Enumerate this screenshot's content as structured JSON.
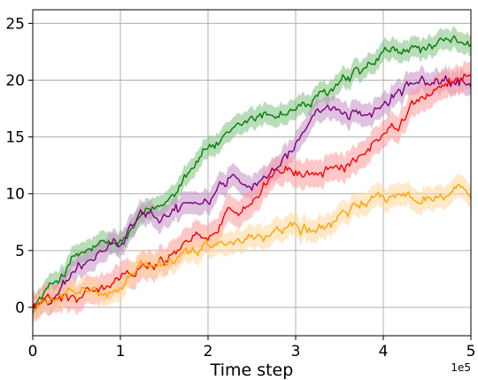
{
  "chart_data": {
    "type": "line",
    "xlabel": "Time step",
    "ylabel": "",
    "x_offset_label": "1e5",
    "xlim": [
      0,
      5
    ],
    "ylim": [
      -2.5,
      26.2
    ],
    "xticks": [
      0,
      1,
      2,
      3,
      4,
      5
    ],
    "xtick_labels": [
      "0",
      "1",
      "2",
      "3",
      "4",
      "5"
    ],
    "yticks": [
      0,
      5,
      10,
      15,
      20,
      25
    ],
    "ytick_labels": [
      "0",
      "5",
      "10",
      "15",
      "20",
      "25"
    ],
    "grid": true,
    "series": [
      {
        "color": "#008000",
        "band_color": "#7fbf7f",
        "x": [
          0,
          0.25,
          0.5,
          0.75,
          1.0,
          1.25,
          1.5,
          1.75,
          2.0,
          2.25,
          2.5,
          2.75,
          3.0,
          3.25,
          3.5,
          3.75,
          4.0,
          4.25,
          4.5,
          4.75,
          5.0
        ],
        "y": [
          0,
          2.2,
          4.5,
          5.3,
          5.5,
          7.8,
          9.0,
          12.0,
          14.2,
          14.8,
          16.5,
          17.0,
          17.5,
          18.2,
          19.5,
          20.5,
          22.0,
          22.5,
          22.8,
          23.0,
          23.7
        ],
        "band": 0.9
      },
      {
        "color": "#800080",
        "band_color": "#c38fc3",
        "x": [
          0,
          0.25,
          0.5,
          0.75,
          1.0,
          1.25,
          1.5,
          1.75,
          2.0,
          2.25,
          2.5,
          2.75,
          3.0,
          3.25,
          3.5,
          3.75,
          4.0,
          4.25,
          4.5,
          4.75,
          5.0
        ],
        "y": [
          0,
          1.2,
          3.2,
          4.8,
          5.8,
          7.8,
          8.5,
          8.8,
          9.5,
          11.5,
          11.0,
          12.5,
          14.2,
          16.5,
          17.0,
          17.2,
          18.0,
          19.5,
          19.8,
          19.7,
          19.8
        ],
        "band": 1.0
      },
      {
        "color": "#ff0000",
        "band_color": "#ff9b9b",
        "x": [
          0,
          0.25,
          0.5,
          0.75,
          1.0,
          1.25,
          1.5,
          1.75,
          2.0,
          2.25,
          2.5,
          2.75,
          3.0,
          3.25,
          3.5,
          3.75,
          4.0,
          4.25,
          4.5,
          4.75,
          5.0
        ],
        "y": [
          0,
          0.6,
          1.0,
          1.6,
          2.8,
          3.6,
          4.3,
          5.0,
          6.8,
          8.5,
          9.5,
          11.5,
          12.0,
          11.5,
          12.5,
          13.0,
          15.3,
          16.8,
          18.8,
          20.0,
          21.0
        ],
        "band": 1.2
      },
      {
        "color": "#ffa500",
        "band_color": "#ffd79b",
        "x": [
          0,
          0.25,
          0.5,
          0.75,
          1.0,
          1.25,
          1.5,
          1.75,
          2.0,
          2.25,
          2.5,
          2.75,
          3.0,
          3.25,
          3.5,
          3.75,
          4.0,
          4.25,
          4.5,
          4.75,
          5.0
        ],
        "y": [
          0,
          0.5,
          1.1,
          1.5,
          2.2,
          3.6,
          4.2,
          5.2,
          5.3,
          5.0,
          6.0,
          6.8,
          7.3,
          6.8,
          7.8,
          8.8,
          9.8,
          9.6,
          9.9,
          9.8,
          10.4
        ],
        "band": 1.0
      }
    ]
  }
}
